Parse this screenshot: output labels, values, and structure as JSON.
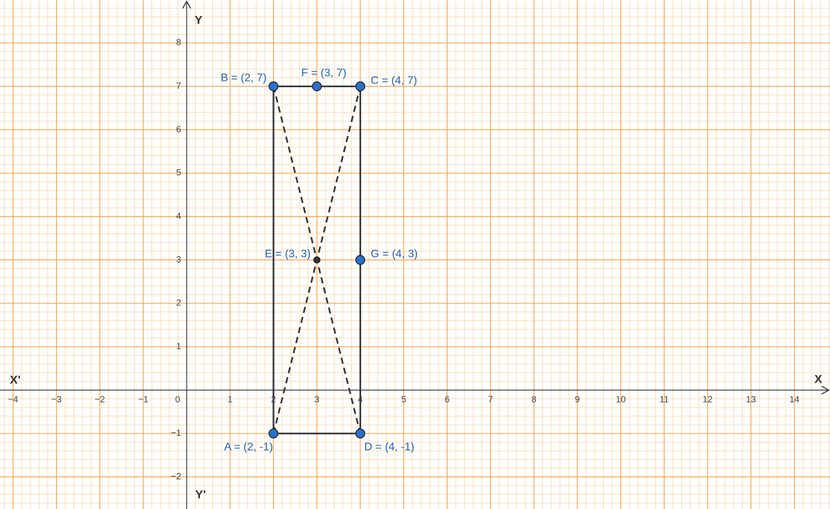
{
  "chart_data": {
    "type": "geometry",
    "x_label_pos": "X",
    "x_label_neg": "X'",
    "y_label_pos": "Y",
    "y_label_neg": "Y'",
    "xlim": [
      -4.3,
      14.82
    ],
    "ylim": [
      -2.74,
      8.99
    ],
    "xticks": [
      {
        "value": -4,
        "label": "−4"
      },
      {
        "value": -3,
        "label": "−3"
      },
      {
        "value": -2,
        "label": "−2"
      },
      {
        "value": -1,
        "label": "−1"
      },
      0,
      1,
      2,
      3,
      4,
      5,
      6,
      7,
      8,
      9,
      10,
      11,
      12,
      13,
      14
    ],
    "yticks": [
      {
        "value": -2,
        "label": "−2"
      },
      {
        "value": -1,
        "label": "−1"
      },
      1,
      2,
      3,
      4,
      5,
      6,
      7,
      8
    ],
    "grid": true,
    "grid_color": "#f5a54a",
    "minor_grid_color": "#fbdcb6",
    "point_color": "#2b6fcc",
    "points": [
      {
        "label": "A = (2, -1)",
        "x": 2,
        "y": -1
      },
      {
        "label": "B = (2, 7)",
        "x": 2,
        "y": 7
      },
      {
        "label": "C = (4, 7)",
        "x": 4,
        "y": 7
      },
      {
        "label": "D = (4, -1)",
        "x": 4,
        "y": -1
      },
      {
        "label": "E = (3, 3)",
        "x": 3,
        "y": 3
      },
      {
        "label": "F = (3, 7)",
        "x": 3,
        "y": 7
      },
      {
        "label": "G = (4, 3)",
        "x": 4,
        "y": 3
      }
    ]
  }
}
